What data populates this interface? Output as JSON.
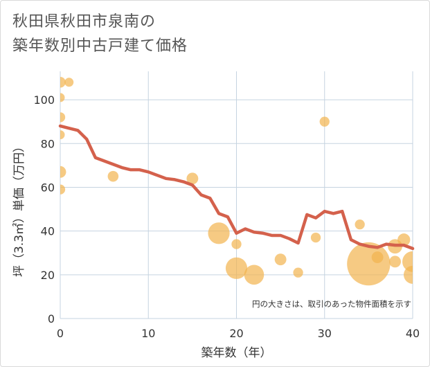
{
  "title_lines": [
    "秋田県秋田市泉南の",
    "築年数別中古戸建て価格"
  ],
  "chart_data": {
    "type": "scatter",
    "title": "秋田県秋田市泉南の築年数別中古戸建て価格",
    "xlabel": "築年数（年）",
    "ylabel": "坪（3.3㎡）単価（万円）",
    "xlim": [
      0,
      40
    ],
    "ylim": [
      0,
      113
    ],
    "xticks": [
      0,
      10,
      20,
      30,
      40
    ],
    "yticks": [
      0,
      20,
      40,
      60,
      80,
      100
    ],
    "grid": true,
    "note": "円の大きさは、取引のあった物件面積を示す",
    "colors": {
      "bubble": "#f2b44e",
      "line": "#d4614c",
      "grid": "#c5d3e0"
    },
    "scatter": [
      {
        "x": 0,
        "y": 108,
        "size": 1.2
      },
      {
        "x": 1,
        "y": 108,
        "size": 1.0
      },
      {
        "x": 0,
        "y": 101,
        "size": 1.0
      },
      {
        "x": 0,
        "y": 92,
        "size": 1.1
      },
      {
        "x": 0,
        "y": 84,
        "size": 1.0
      },
      {
        "x": 0,
        "y": 67,
        "size": 1.3
      },
      {
        "x": 0,
        "y": 59,
        "size": 1.1
      },
      {
        "x": 6,
        "y": 65,
        "size": 1.2
      },
      {
        "x": 15,
        "y": 64,
        "size": 1.3
      },
      {
        "x": 18,
        "y": 39,
        "size": 2.4
      },
      {
        "x": 20,
        "y": 34,
        "size": 1.1
      },
      {
        "x": 20,
        "y": 23,
        "size": 2.4
      },
      {
        "x": 22,
        "y": 20,
        "size": 2.2
      },
      {
        "x": 25,
        "y": 27,
        "size": 1.3
      },
      {
        "x": 27,
        "y": 21,
        "size": 1.1
      },
      {
        "x": 29,
        "y": 37,
        "size": 1.1
      },
      {
        "x": 30,
        "y": 90,
        "size": 1.1
      },
      {
        "x": 34,
        "y": 43,
        "size": 1.1
      },
      {
        "x": 35,
        "y": 25,
        "size": 4.8
      },
      {
        "x": 36,
        "y": 28,
        "size": 1.3
      },
      {
        "x": 38,
        "y": 33,
        "size": 1.6
      },
      {
        "x": 38,
        "y": 26,
        "size": 1.3
      },
      {
        "x": 39,
        "y": 36,
        "size": 1.4
      },
      {
        "x": 40,
        "y": 26,
        "size": 2.3
      },
      {
        "x": 40,
        "y": 20,
        "size": 2.0
      }
    ],
    "trend": {
      "x": [
        0,
        1,
        2,
        3,
        4,
        5,
        6,
        7,
        8,
        9,
        10,
        11,
        12,
        13,
        14,
        15,
        16,
        17,
        18,
        19,
        20,
        21,
        22,
        23,
        24,
        25,
        26,
        27,
        28,
        29,
        30,
        31,
        32,
        33,
        34,
        35,
        36,
        37,
        38,
        39,
        40
      ],
      "y": [
        88,
        87,
        86,
        82,
        73.5,
        72,
        70.5,
        69,
        68,
        68,
        67,
        65.5,
        64,
        63.5,
        62.5,
        61,
        56.5,
        55,
        48,
        46.5,
        39,
        41,
        39.5,
        39,
        38,
        38,
        36.5,
        34.5,
        47.5,
        46,
        49,
        48,
        49,
        36,
        34,
        33,
        32.5,
        34,
        33.5,
        33.5,
        32
      ]
    }
  }
}
